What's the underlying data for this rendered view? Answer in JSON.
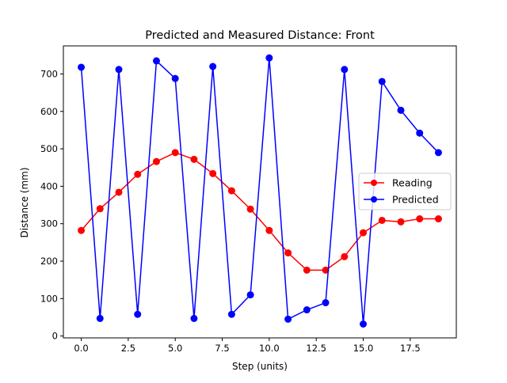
{
  "chart_data": {
    "type": "line",
    "title": "Predicted and Measured Distance: Front",
    "xlabel": "Step (units)",
    "ylabel": "Distance (mm)",
    "xlim": [
      -0.95,
      19.95
    ],
    "ylim": [
      -5,
      775
    ],
    "xticks": [
      0.0,
      2.5,
      5.0,
      7.5,
      10.0,
      12.5,
      15.0,
      17.5
    ],
    "xtick_labels": [
      "0.0",
      "2.5",
      "5.0",
      "7.5",
      "10.0",
      "12.5",
      "15.0",
      "17.5"
    ],
    "yticks": [
      0,
      100,
      200,
      300,
      400,
      500,
      600,
      700
    ],
    "ytick_labels": [
      "0",
      "100",
      "200",
      "300",
      "400",
      "500",
      "600",
      "700"
    ],
    "grid": false,
    "legend_position": "center-right",
    "series": [
      {
        "name": "Reading",
        "color": "#ff0000",
        "marker": "circle",
        "x": [
          0,
          1,
          2,
          3,
          4,
          5,
          6,
          7,
          8,
          9,
          10,
          11,
          12,
          13,
          14,
          15,
          16,
          17,
          18,
          19
        ],
        "y": [
          282,
          340,
          384,
          432,
          466,
          490,
          472,
          434,
          388,
          339,
          282,
          222,
          176,
          176,
          212,
          276,
          309,
          305,
          313,
          313
        ]
      },
      {
        "name": "Predicted",
        "color": "#0000ff",
        "marker": "circle",
        "x": [
          0,
          1,
          2,
          3,
          4,
          5,
          6,
          7,
          8,
          9,
          10,
          11,
          12,
          13,
          14,
          15,
          16,
          17,
          18,
          19
        ],
        "y": [
          718,
          47,
          712,
          58,
          735,
          688,
          47,
          720,
          58,
          110,
          743,
          45,
          70,
          89,
          712,
          32,
          680,
          603,
          542,
          490
        ]
      }
    ]
  }
}
